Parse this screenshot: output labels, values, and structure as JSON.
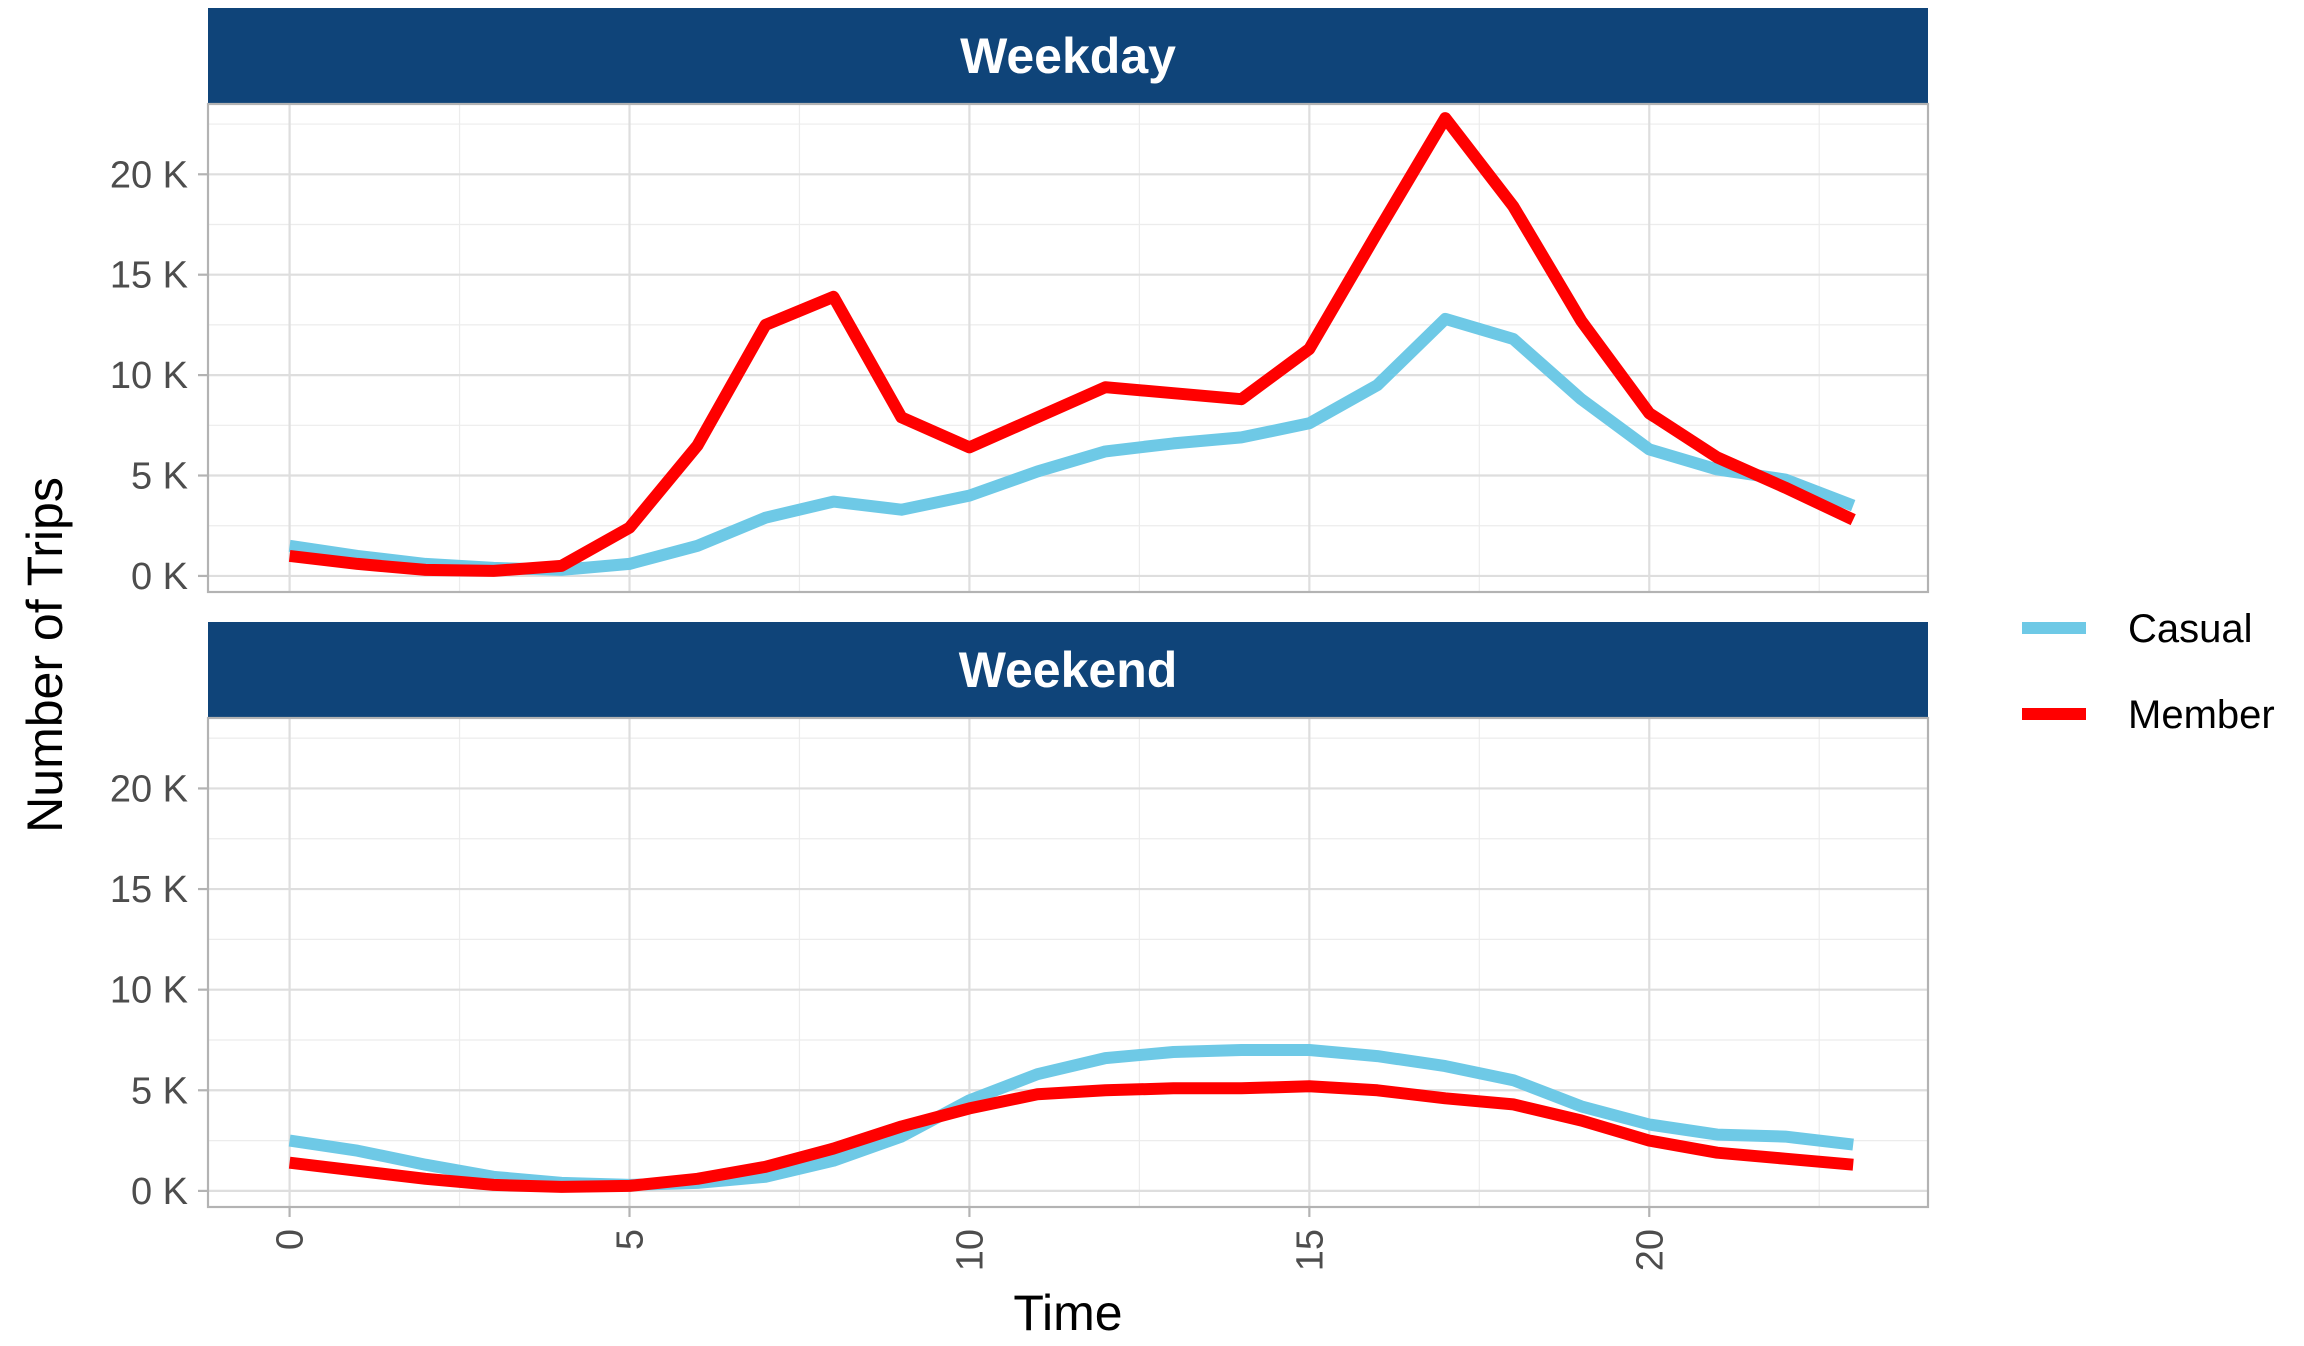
{
  "chart_data": {
    "type": "line",
    "facets": [
      {
        "title": "Weekday",
        "series": [
          {
            "name": "Casual",
            "x": [
              0,
              1,
              2,
              3,
              4,
              5,
              6,
              7,
              8,
              9,
              10,
              11,
              12,
              13,
              14,
              15,
              16,
              17,
              18,
              19,
              20,
              21,
              22,
              23
            ],
            "values": [
              1500,
              1000,
              600,
              400,
              300,
              600,
              1500,
              2900,
              3700,
              3300,
              4000,
              5200,
              6200,
              6600,
              6900,
              7600,
              9500,
              12800,
              11800,
              8800,
              6300,
              5300,
              4800,
              3500
            ]
          },
          {
            "name": "Member",
            "x": [
              0,
              1,
              2,
              3,
              4,
              5,
              6,
              7,
              8,
              9,
              10,
              11,
              12,
              13,
              14,
              15,
              16,
              17,
              18,
              19,
              20,
              21,
              22,
              23
            ],
            "values": [
              1000,
              600,
              300,
              250,
              500,
              2400,
              6500,
              12500,
              13900,
              7900,
              6400,
              7900,
              9400,
              9100,
              8800,
              11300,
              17100,
              22800,
              18400,
              12700,
              8100,
              5900,
              4400,
              2800
            ]
          }
        ]
      },
      {
        "title": "Weekend",
        "series": [
          {
            "name": "Casual",
            "x": [
              0,
              1,
              2,
              3,
              4,
              5,
              6,
              7,
              8,
              9,
              10,
              11,
              12,
              13,
              14,
              15,
              16,
              17,
              18,
              19,
              20,
              21,
              22,
              23
            ],
            "values": [
              2500,
              2000,
              1300,
              700,
              400,
              300,
              400,
              700,
              1500,
              2700,
              4500,
              5800,
              6600,
              6900,
              7000,
              7000,
              6700,
              6200,
              5500,
              4200,
              3300,
              2800,
              2700,
              2300
            ]
          },
          {
            "name": "Member",
            "x": [
              0,
              1,
              2,
              3,
              4,
              5,
              6,
              7,
              8,
              9,
              10,
              11,
              12,
              13,
              14,
              15,
              16,
              17,
              18,
              19,
              20,
              21,
              22,
              23
            ],
            "values": [
              1400,
              1000,
              600,
              300,
              200,
              250,
              600,
              1200,
              2100,
              3200,
              4100,
              4800,
              5000,
              5100,
              5100,
              5200,
              5000,
              4600,
              4300,
              3500,
              2500,
              1900,
              1600,
              1300
            ]
          }
        ]
      }
    ],
    "xlabel": "Time",
    "ylabel": "Number of Trips",
    "x_ticks": [
      0,
      5,
      10,
      15,
      20
    ],
    "y_ticks": [
      0,
      5000,
      10000,
      15000,
      20000
    ],
    "y_tick_labels": [
      "0 K",
      "5 K",
      "10 K",
      "15 K",
      "20 K"
    ],
    "xlim": [
      -1.2,
      24.1
    ],
    "ylim": [
      -800,
      23500
    ],
    "grid": true,
    "legend": {
      "position": "right",
      "entries": [
        {
          "name": "Casual",
          "color": "#6ec9e6"
        },
        {
          "name": "Member",
          "color": "#ff0000"
        }
      ]
    },
    "colors": {
      "strip": "#0f4479",
      "casual": "#6ec9e6",
      "member": "#ff0000"
    }
  }
}
